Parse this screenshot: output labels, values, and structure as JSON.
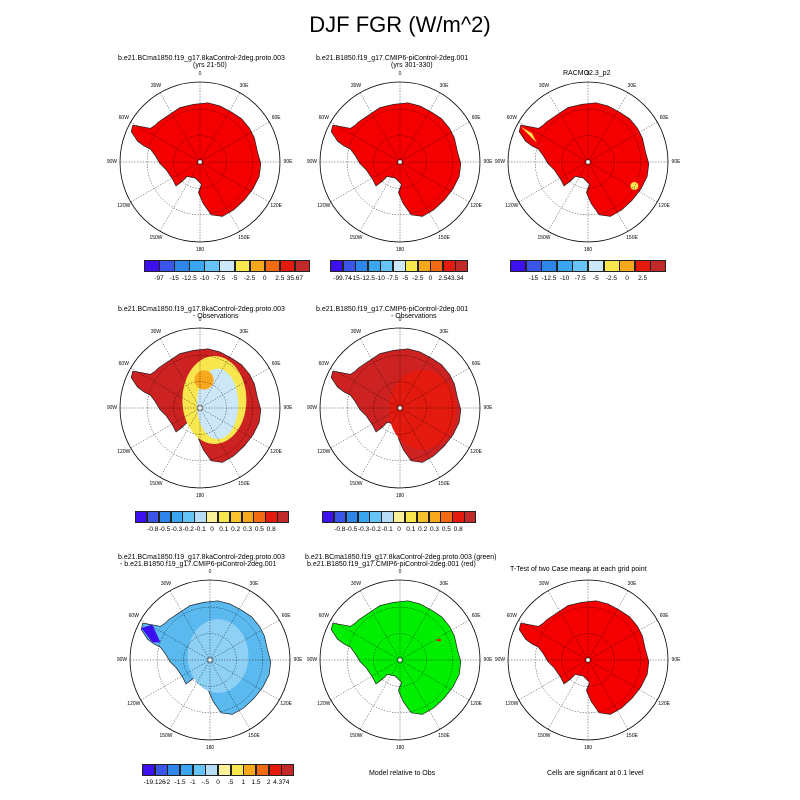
{
  "figure": {
    "title": "DJF FGR (W/m^2)",
    "panels": [
      {
        "id": "p1",
        "title": "b.e21.BCmа1850.f19_g17.8kaControl-2deg.proto.003",
        "subtitle": "(yrs 21-50)",
        "fill": "#f40000",
        "pattern": "uniform"
      },
      {
        "id": "p2",
        "title": "b.e21.B1850.f19_g17.CMIP6-piControl-2deg.001",
        "subtitle": "(yrs 301-330)",
        "fill": "#f40000",
        "pattern": "uniform"
      },
      {
        "id": "p3",
        "title": "RACMO2.3_p2",
        "subtitle": "",
        "fill": "#f40000",
        "pattern": "racmo"
      },
      {
        "id": "p4",
        "title": "b.e21.BCmа1850.f19_g17.8kaControl-2deg.proto.003",
        "subtitle": "- Observations",
        "fill": "#cc2222",
        "pattern": "diff1"
      },
      {
        "id": "p5",
        "title": "b.e21.B1850.f19_g17.CMIP6-piControl-2deg.001",
        "subtitle": "- Observations",
        "fill": "#cc2222",
        "pattern": "diff2"
      },
      {
        "id": "p6",
        "title": "b.e21.BCmа1850.f19_g17.8kaControl-2deg.proto.003",
        "subtitle": "- b.e21.B1850.f19_g17.CMIP6-piControl-2deg.001",
        "fill": "#5ab9ee",
        "pattern": "caseDiff"
      },
      {
        "id": "p7",
        "title": "b.e21.BCmа1850.f19_g17.8kaControl-2deg.proto.003 (green)",
        "subtitle": "b.e21.B1850.f19_g17.CMIP6-piControl-2deg.001 (red)",
        "fill": "#00ee00",
        "pattern": "green"
      },
      {
        "id": "p8",
        "title": "T-Test of two Case means at each grid point",
        "subtitle": "",
        "fill": "#f40000",
        "pattern": "ttest"
      }
    ],
    "longitude_labels": [
      "0",
      "30E",
      "60E",
      "90E",
      "120E",
      "150E",
      "180",
      "150W",
      "120W",
      "90W",
      "60W",
      "30W"
    ],
    "colorbars": [
      {
        "id": "cb1",
        "labels": [
          "-97",
          "-15",
          "-12.5",
          "-10",
          "-7.5",
          "-5",
          "-2.5",
          "0",
          "2.5",
          "35.67"
        ],
        "colors": [
          "#3d10f0",
          "#3a55e8",
          "#2f86ea",
          "#3aa5f0",
          "#66c3f5",
          "#cce8f8",
          "#f7e64e",
          "#f8a81c",
          "#f36a12",
          "#e41a0e",
          "#c22a2a"
        ]
      },
      {
        "id": "cb2",
        "labels": [
          "-99.74",
          "-15",
          "-12.5",
          "-10",
          "-7.5",
          "-5",
          "-2.5",
          "0",
          "2.5",
          "43.34"
        ],
        "colors": [
          "#3d10f0",
          "#3a55e8",
          "#2f86ea",
          "#3aa5f0",
          "#66c3f5",
          "#cce8f8",
          "#f7e64e",
          "#f8a81c",
          "#f36a12",
          "#e41a0e",
          "#c22a2a"
        ]
      },
      {
        "id": "cb3",
        "labels": [
          "-15",
          "-12.5",
          "-10",
          "-7.5",
          "-5",
          "-2.5",
          "0",
          "2.5"
        ],
        "colors": [
          "#3d10f0",
          "#3a55e8",
          "#2f86ea",
          "#3aa5f0",
          "#66c3f5",
          "#cce8f8",
          "#f7e64e",
          "#f8a81c",
          "#e41a0e",
          "#c22a2a"
        ]
      },
      {
        "id": "cb4",
        "labels": [
          "-0.8",
          "-0.5",
          "-0.3",
          "-0.2",
          "-0.1",
          "0",
          "0.1",
          "0.2",
          "0.3",
          "0.5",
          "0.8"
        ],
        "colors": [
          "#3d10f0",
          "#3a55e8",
          "#2f86ea",
          "#3aa5f0",
          "#66c3f5",
          "#b8dcf6",
          "#fbf09a",
          "#f7e64e",
          "#f8c22c",
          "#f8a81c",
          "#f36a12",
          "#e41a0e",
          "#c22a2a"
        ]
      },
      {
        "id": "cb5",
        "labels": [
          "-0.8",
          "-0.5",
          "-0.3",
          "-0.2",
          "-0.1",
          "0",
          "0.1",
          "0.2",
          "0.3",
          "0.5",
          "0.8"
        ],
        "colors": [
          "#3d10f0",
          "#3a55e8",
          "#2f86ea",
          "#3aa5f0",
          "#66c3f5",
          "#b8dcf6",
          "#fbf09a",
          "#f7e64e",
          "#f8c22c",
          "#f8a81c",
          "#f36a12",
          "#e41a0e",
          "#c22a2a"
        ]
      },
      {
        "id": "cb6",
        "labels": [
          "-19.126",
          "-2",
          "-1.5",
          "-1",
          "-.5",
          "0",
          ".5",
          "1",
          "1.5",
          "2",
          "4.374"
        ],
        "colors": [
          "#3d10f0",
          "#3a55e8",
          "#2f86ea",
          "#3aa5f0",
          "#66c3f5",
          "#b8dcf6",
          "#fbf09a",
          "#f7e64e",
          "#f8a81c",
          "#f36a12",
          "#e41a0e",
          "#c22a2a"
        ]
      }
    ],
    "notes": {
      "model_vs_obs": "Model relative to Obs",
      "significance": "Cells are significant at 0.1 level"
    }
  }
}
